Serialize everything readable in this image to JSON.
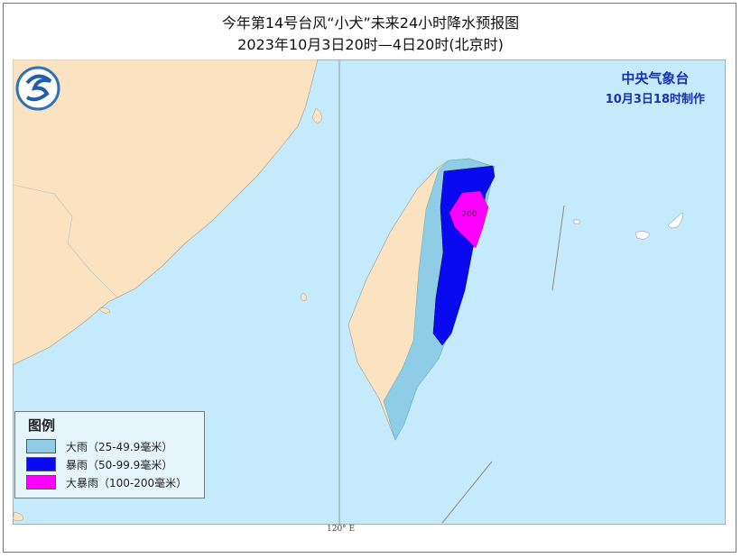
{
  "title": "今年第14号台风“小犬”未来24小时降水预报图",
  "subtitle": "2023年10月3日20时—4日20时(北京时)",
  "agency": {
    "name": "中央气象台",
    "issued": "10月3日18时制作"
  },
  "colors": {
    "sea": "#c5eafb",
    "land": "#fbe3c1",
    "heavy": "#8fcde6",
    "rainstorm": "#0a0af0",
    "heavy_rainstorm": "#ff00ff"
  },
  "legend": {
    "title": "图例",
    "items": [
      {
        "label": "大雨（25-49.9毫米）",
        "color": "#8fcde6"
      },
      {
        "label": "暴雨（50-99.9毫米）",
        "color": "#0a0af0"
      },
      {
        "label": "大暴雨（100-200毫米）",
        "color": "#ff00ff"
      }
    ]
  },
  "contour_label": "200",
  "longitude_label": "120° E",
  "logo": "cma-logo"
}
